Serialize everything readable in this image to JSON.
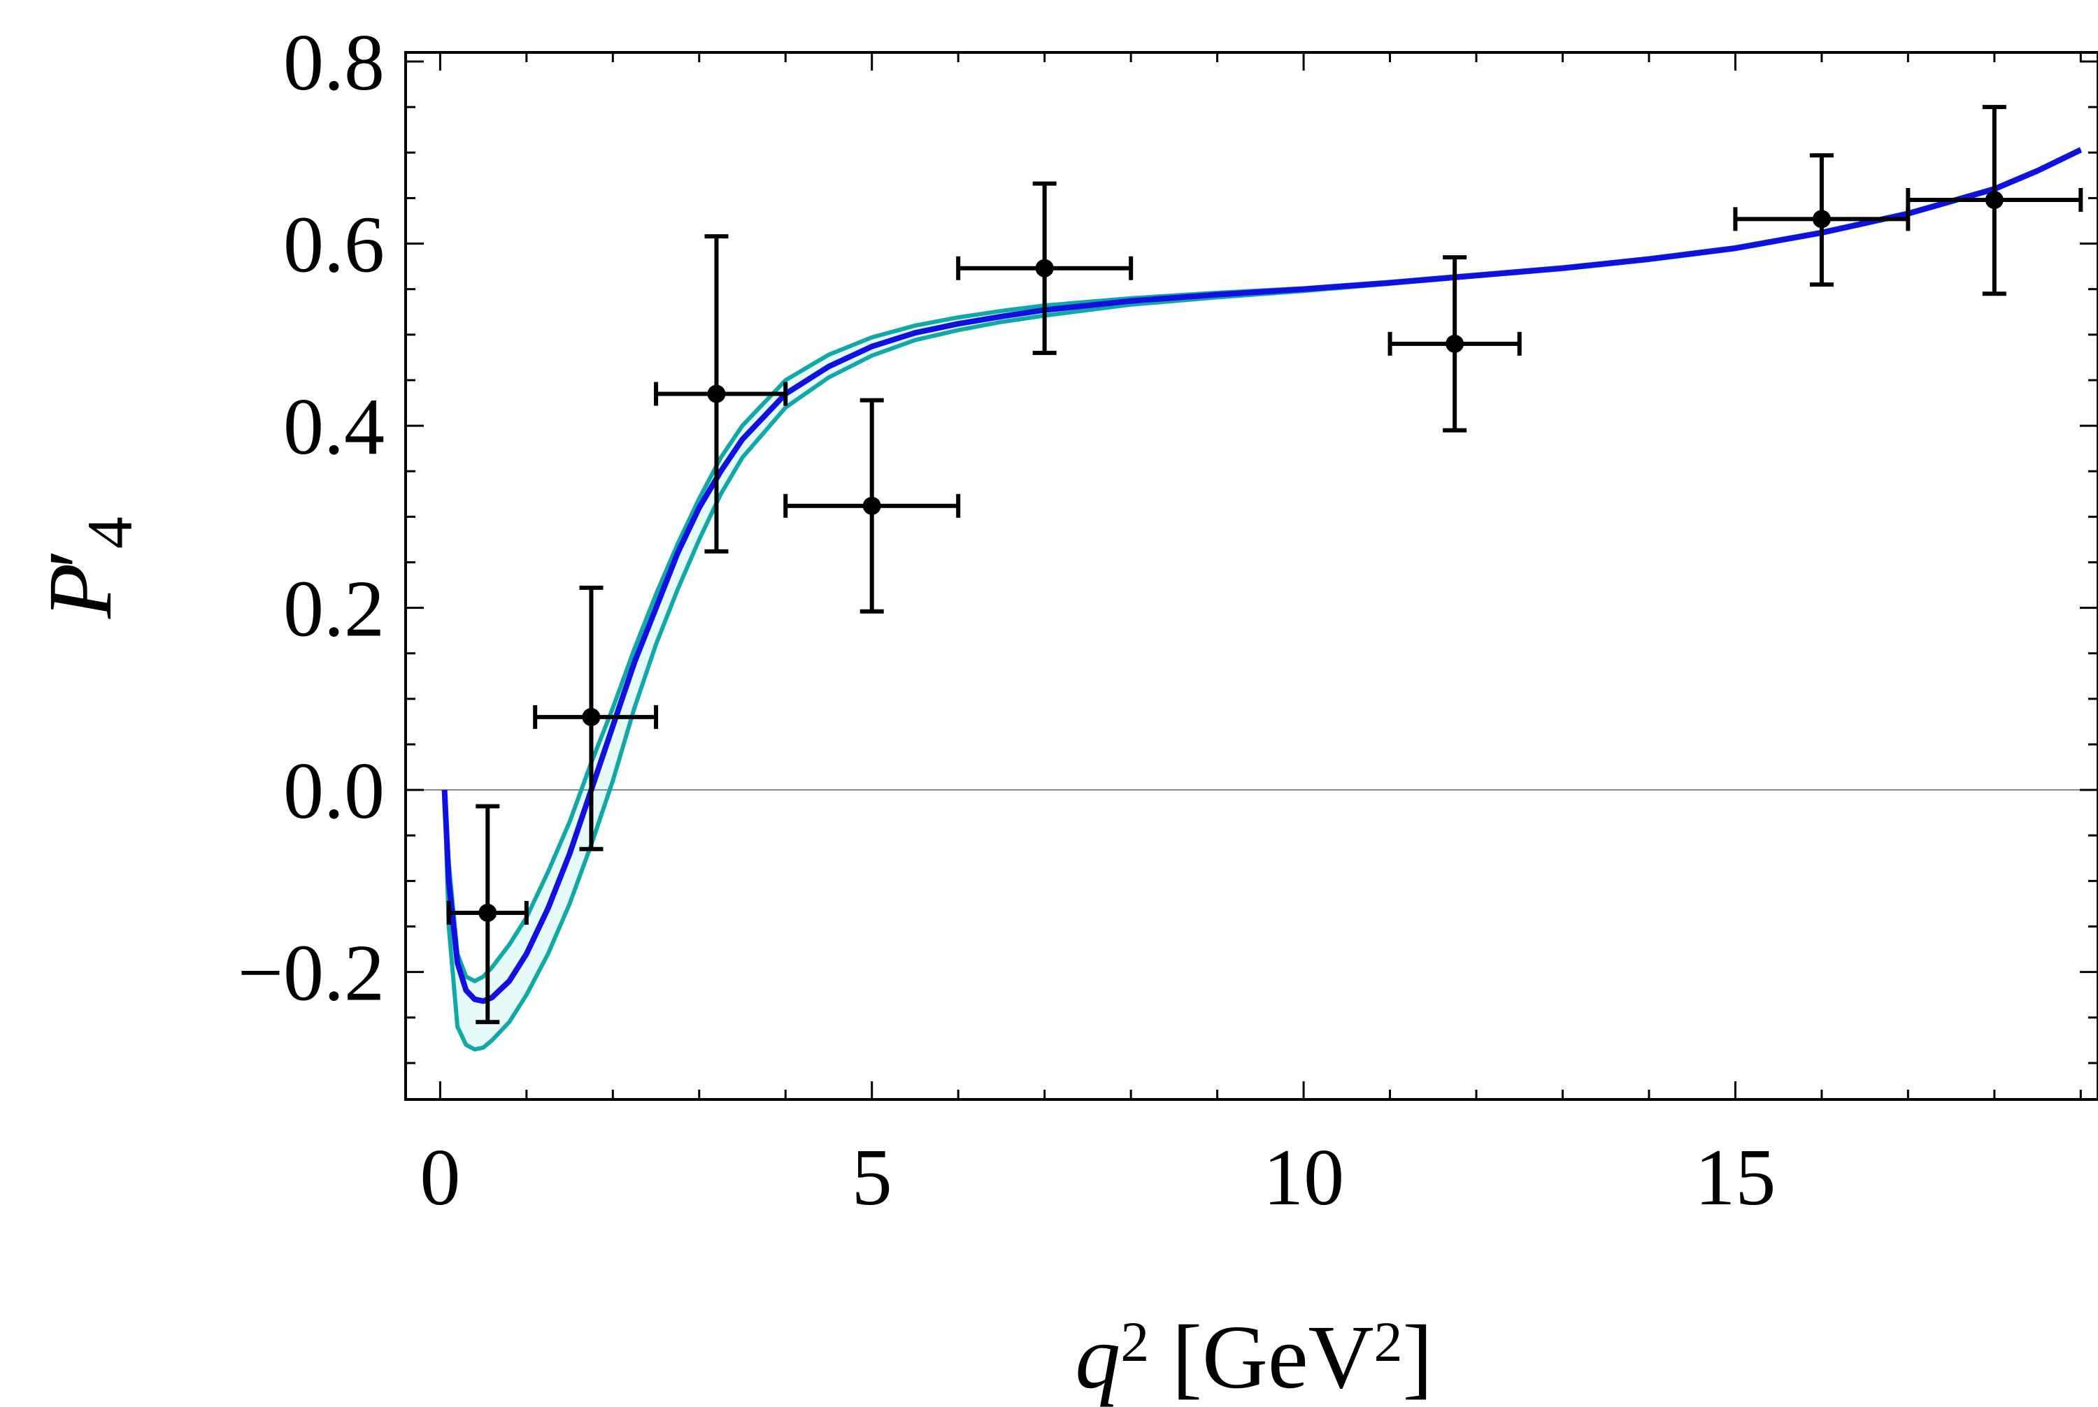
{
  "chart_data": {
    "type": "line",
    "title": "",
    "xlabel": {
      "var": "q",
      "var_sup": "2",
      "unit_open": " [GeV",
      "unit_sup": "2",
      "unit_close": "]"
    },
    "ylabel": {
      "var": "P",
      "prime": "′",
      "sub": "4"
    },
    "xlim": [
      -0.4,
      19.2
    ],
    "ylim": [
      -0.34,
      0.81
    ],
    "xticks": [
      {
        "value": 0,
        "label": "0"
      },
      {
        "value": 5,
        "label": "5"
      },
      {
        "value": 10,
        "label": "10"
      },
      {
        "value": 15,
        "label": "15"
      }
    ],
    "yticks": [
      {
        "value": -0.2,
        "label": "−0.2"
      },
      {
        "value": 0.0,
        "label": "0.0"
      },
      {
        "value": 0.2,
        "label": "0.2"
      },
      {
        "value": 0.4,
        "label": "0.4"
      },
      {
        "value": 0.6,
        "label": "0.6"
      },
      {
        "value": 0.8,
        "label": "0.8"
      }
    ],
    "x_minor_step": 1,
    "y_minor_step": 0.05,
    "zero_line": true,
    "colors": {
      "central": "#1010e0",
      "band_edge": "#10a8a8",
      "band_fill": "#e6fafa",
      "data": "#000000",
      "zero_line": "#888888"
    },
    "series": [
      {
        "name": "central",
        "x": [
          0.05,
          0.1,
          0.2,
          0.3,
          0.4,
          0.5,
          0.6,
          0.8,
          1.0,
          1.25,
          1.5,
          1.75,
          2.0,
          2.25,
          2.5,
          2.75,
          3.0,
          3.25,
          3.5,
          4.0,
          4.5,
          5.0,
          5.5,
          6.0,
          6.5,
          7.0,
          8.0,
          9.0,
          10.0,
          11.0,
          12.0,
          13.0,
          14.0,
          15.0,
          16.0,
          17.0,
          18.0,
          18.5,
          19.0
        ],
        "y": [
          0.0,
          -0.1,
          -0.19,
          -0.22,
          -0.23,
          -0.232,
          -0.228,
          -0.21,
          -0.18,
          -0.13,
          -0.07,
          0.0,
          0.07,
          0.14,
          0.2,
          0.26,
          0.31,
          0.35,
          0.385,
          0.435,
          0.465,
          0.487,
          0.502,
          0.512,
          0.52,
          0.527,
          0.537,
          0.544,
          0.55,
          0.557,
          0.565,
          0.573,
          0.583,
          0.595,
          0.612,
          0.633,
          0.66,
          0.68,
          0.703
        ]
      },
      {
        "name": "band-upper",
        "x": [
          0.05,
          0.1,
          0.2,
          0.3,
          0.4,
          0.5,
          0.6,
          0.8,
          1.0,
          1.25,
          1.5,
          1.75,
          2.0,
          2.25,
          2.5,
          2.75,
          3.0,
          3.25,
          3.5,
          4.0,
          4.5,
          5.0,
          5.5,
          6.0,
          6.5,
          7.0,
          8.0,
          9.0,
          10.0,
          11.0,
          12.0,
          13.0,
          14.0,
          15.0,
          16.0,
          17.0,
          18.0,
          18.5,
          19.0
        ],
        "y": [
          0.0,
          -0.08,
          -0.18,
          -0.205,
          -0.21,
          -0.205,
          -0.195,
          -0.17,
          -0.14,
          -0.09,
          -0.035,
          0.03,
          0.09,
          0.155,
          0.215,
          0.27,
          0.32,
          0.365,
          0.4,
          0.45,
          0.478,
          0.497,
          0.51,
          0.519,
          0.526,
          0.532,
          0.54,
          0.546,
          0.551,
          0.558,
          0.566,
          0.574,
          0.584,
          0.596,
          0.613,
          0.634,
          0.661,
          0.681,
          0.704
        ]
      },
      {
        "name": "band-lower",
        "x": [
          0.05,
          0.1,
          0.2,
          0.3,
          0.4,
          0.5,
          0.6,
          0.8,
          1.0,
          1.25,
          1.5,
          1.75,
          2.0,
          2.25,
          2.5,
          2.75,
          3.0,
          3.25,
          3.5,
          4.0,
          4.5,
          5.0,
          5.5,
          6.0,
          6.5,
          7.0,
          8.0,
          9.0,
          10.0,
          11.0,
          12.0,
          13.0,
          14.0,
          15.0,
          16.0,
          17.0,
          18.0,
          18.5,
          19.0
        ],
        "y": [
          0.0,
          -0.15,
          -0.26,
          -0.28,
          -0.285,
          -0.283,
          -0.275,
          -0.255,
          -0.225,
          -0.18,
          -0.125,
          -0.06,
          0.01,
          0.09,
          0.16,
          0.22,
          0.275,
          0.325,
          0.365,
          0.42,
          0.453,
          0.477,
          0.494,
          0.505,
          0.514,
          0.521,
          0.533,
          0.541,
          0.548,
          0.556,
          0.564,
          0.572,
          0.582,
          0.594,
          0.611,
          0.632,
          0.659,
          0.679,
          0.702
        ]
      }
    ],
    "data_points": [
      {
        "x": 0.55,
        "y": -0.135,
        "x_low": 0.1,
        "x_high": 1.0,
        "y_low": -0.255,
        "y_high": -0.018
      },
      {
        "x": 1.75,
        "y": 0.08,
        "x_low": 1.1,
        "x_high": 2.5,
        "y_low": -0.065,
        "y_high": 0.222
      },
      {
        "x": 3.2,
        "y": 0.435,
        "x_low": 2.5,
        "x_high": 4.0,
        "y_low": 0.262,
        "y_high": 0.608
      },
      {
        "x": 5.0,
        "y": 0.312,
        "x_low": 4.0,
        "x_high": 6.0,
        "y_low": 0.196,
        "y_high": 0.428
      },
      {
        "x": 7.0,
        "y": 0.573,
        "x_low": 6.0,
        "x_high": 8.0,
        "y_low": 0.48,
        "y_high": 0.666
      },
      {
        "x": 11.75,
        "y": 0.49,
        "x_low": 11.0,
        "x_high": 12.5,
        "y_low": 0.395,
        "y_high": 0.585
      },
      {
        "x": 16.0,
        "y": 0.627,
        "x_low": 15.0,
        "x_high": 17.0,
        "y_low": 0.555,
        "y_high": 0.697
      },
      {
        "x": 18.0,
        "y": 0.648,
        "x_low": 17.0,
        "x_high": 19.0,
        "y_low": 0.545,
        "y_high": 0.75
      }
    ]
  }
}
